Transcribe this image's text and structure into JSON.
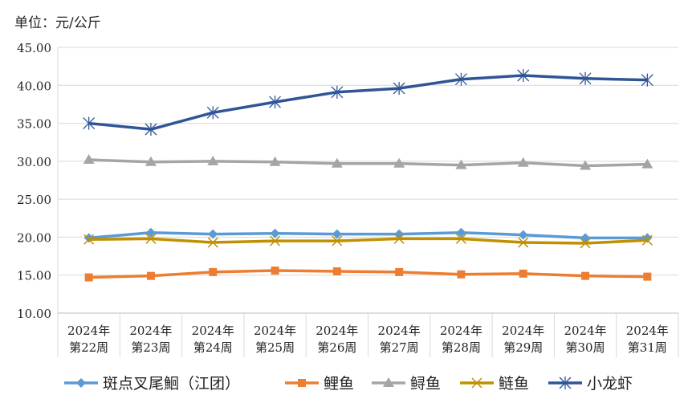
{
  "chart_data": {
    "type": "line",
    "unit_label": "单位：元/公斤",
    "categories": [
      [
        "2024年",
        "第22周"
      ],
      [
        "2024年",
        "第23周"
      ],
      [
        "2024年",
        "第24周"
      ],
      [
        "2024年",
        "第25周"
      ],
      [
        "2024年",
        "第26周"
      ],
      [
        "2024年",
        "第27周"
      ],
      [
        "2024年",
        "第28周"
      ],
      [
        "2024年",
        "第29周"
      ],
      [
        "2024年",
        "第30周"
      ],
      [
        "2024年",
        "第31周"
      ]
    ],
    "ylim": [
      10,
      45
    ],
    "yticks": [
      "10.00",
      "15.00",
      "20.00",
      "25.00",
      "30.00",
      "35.00",
      "40.00",
      "45.00"
    ],
    "ytick_values": [
      10,
      15,
      20,
      25,
      30,
      35,
      40,
      45
    ],
    "grid": true,
    "legend_position": "bottom",
    "series": [
      {
        "name": "斑点叉尾鮰（江团）",
        "color": "#5B9BD5",
        "marker": "diamond",
        "values": [
          19.9,
          20.6,
          20.4,
          20.5,
          20.4,
          20.4,
          20.6,
          20.3,
          19.9,
          19.9
        ]
      },
      {
        "name": "鲤鱼",
        "color": "#ED7D31",
        "marker": "square",
        "values": [
          14.7,
          14.9,
          15.4,
          15.6,
          15.5,
          15.4,
          15.1,
          15.2,
          14.9,
          14.8
        ]
      },
      {
        "name": "鲟鱼",
        "color": "#A5A5A5",
        "marker": "triangle",
        "values": [
          30.2,
          29.9,
          30.0,
          29.9,
          29.7,
          29.7,
          29.5,
          29.8,
          29.4,
          29.6
        ]
      },
      {
        "name": "鲢鱼",
        "color": "#C09000",
        "marker": "x",
        "values": [
          19.7,
          19.8,
          19.3,
          19.5,
          19.5,
          19.8,
          19.8,
          19.3,
          19.2,
          19.6
        ]
      },
      {
        "name": "小龙虾",
        "color": "#2F5597",
        "marker": "star",
        "values": [
          35.0,
          34.2,
          36.4,
          37.8,
          39.1,
          39.6,
          40.8,
          41.3,
          40.9,
          40.7
        ]
      }
    ]
  }
}
